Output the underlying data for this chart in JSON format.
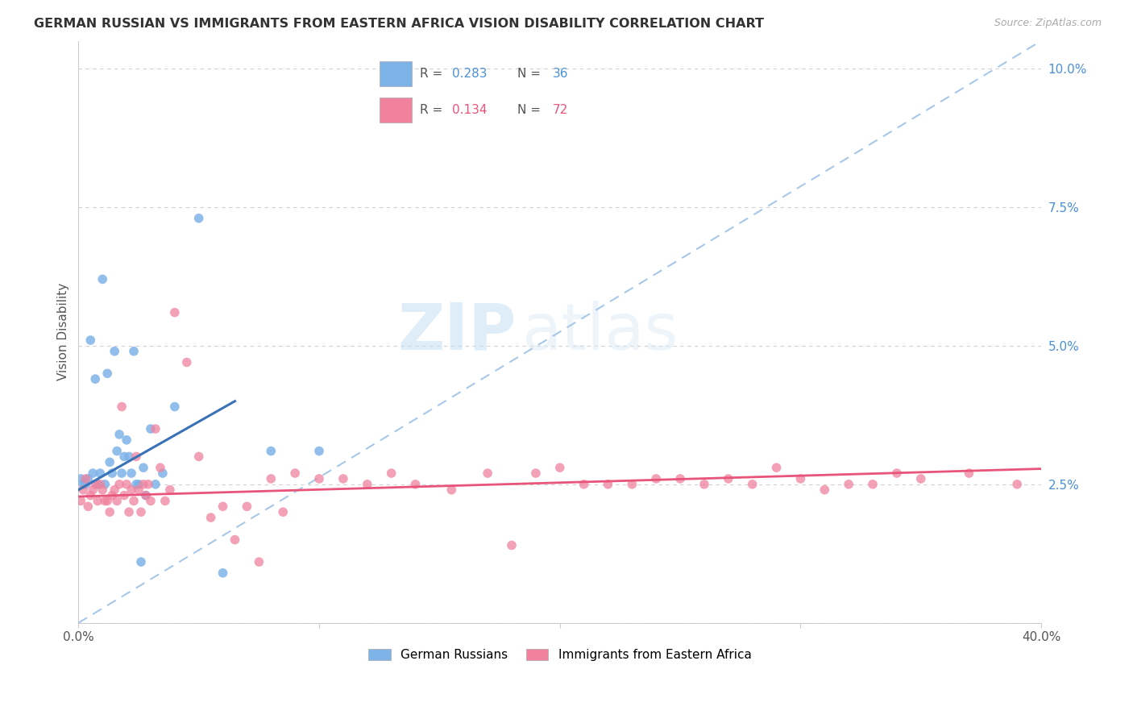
{
  "title": "GERMAN RUSSIAN VS IMMIGRANTS FROM EASTERN AFRICA VISION DISABILITY CORRELATION CHART",
  "source": "Source: ZipAtlas.com",
  "ylabel": "Vision Disability",
  "yticks": [
    0.0,
    0.025,
    0.05,
    0.075,
    0.1
  ],
  "ytick_labels": [
    "",
    "2.5%",
    "5.0%",
    "7.5%",
    "10.0%"
  ],
  "xticks": [
    0.0,
    0.1,
    0.2,
    0.3,
    0.4
  ],
  "xtick_labels": [
    "0.0%",
    "",
    "",
    "",
    "40.0%"
  ],
  "xlim": [
    0.0,
    0.4
  ],
  "ylim": [
    0.0,
    0.105
  ],
  "blue_R": 0.283,
  "blue_N": 36,
  "pink_R": 0.134,
  "pink_N": 72,
  "legend_label_blue": "German Russians",
  "legend_label_pink": "Immigrants from Eastern Africa",
  "blue_color": "#7eb3e8",
  "pink_color": "#f0829e",
  "blue_line_color": "#3a72b8",
  "pink_line_color": "#e8547a",
  "dashed_line_color": "#a8c8e8",
  "watermark_zip": "ZIP",
  "watermark_atlas": "atlas",
  "background_color": "#ffffff",
  "blue_points_x": [
    0.001,
    0.002,
    0.003,
    0.004,
    0.005,
    0.006,
    0.007,
    0.008,
    0.009,
    0.01,
    0.011,
    0.012,
    0.013,
    0.014,
    0.015,
    0.016,
    0.017,
    0.018,
    0.019,
    0.02,
    0.021,
    0.022,
    0.023,
    0.024,
    0.025,
    0.026,
    0.027,
    0.028,
    0.03,
    0.032,
    0.035,
    0.04,
    0.05,
    0.06,
    0.08,
    0.1
  ],
  "blue_points_y": [
    0.026,
    0.025,
    0.025,
    0.026,
    0.051,
    0.027,
    0.044,
    0.025,
    0.027,
    0.062,
    0.025,
    0.045,
    0.029,
    0.027,
    0.049,
    0.031,
    0.034,
    0.027,
    0.03,
    0.033,
    0.03,
    0.027,
    0.049,
    0.025,
    0.025,
    0.011,
    0.028,
    0.023,
    0.035,
    0.025,
    0.027,
    0.039,
    0.073,
    0.009,
    0.031,
    0.031
  ],
  "pink_points_x": [
    0.001,
    0.002,
    0.003,
    0.004,
    0.005,
    0.006,
    0.007,
    0.008,
    0.009,
    0.01,
    0.011,
    0.012,
    0.013,
    0.014,
    0.015,
    0.016,
    0.017,
    0.018,
    0.019,
    0.02,
    0.021,
    0.022,
    0.023,
    0.024,
    0.025,
    0.026,
    0.027,
    0.028,
    0.029,
    0.03,
    0.032,
    0.034,
    0.036,
    0.038,
    0.04,
    0.045,
    0.05,
    0.055,
    0.06,
    0.065,
    0.07,
    0.075,
    0.08,
    0.085,
    0.09,
    0.1,
    0.11,
    0.12,
    0.13,
    0.14,
    0.155,
    0.17,
    0.19,
    0.21,
    0.23,
    0.25,
    0.27,
    0.29,
    0.31,
    0.33,
    0.35,
    0.37,
    0.39,
    0.18,
    0.2,
    0.22,
    0.24,
    0.26,
    0.28,
    0.3,
    0.32,
    0.34
  ],
  "pink_points_y": [
    0.022,
    0.024,
    0.026,
    0.021,
    0.023,
    0.024,
    0.025,
    0.022,
    0.025,
    0.024,
    0.022,
    0.022,
    0.02,
    0.023,
    0.024,
    0.022,
    0.025,
    0.039,
    0.023,
    0.025,
    0.02,
    0.024,
    0.022,
    0.03,
    0.024,
    0.02,
    0.025,
    0.023,
    0.025,
    0.022,
    0.035,
    0.028,
    0.022,
    0.024,
    0.056,
    0.047,
    0.03,
    0.019,
    0.021,
    0.015,
    0.021,
    0.011,
    0.026,
    0.02,
    0.027,
    0.026,
    0.026,
    0.025,
    0.027,
    0.025,
    0.024,
    0.027,
    0.027,
    0.025,
    0.025,
    0.026,
    0.026,
    0.028,
    0.024,
    0.025,
    0.026,
    0.027,
    0.025,
    0.014,
    0.028,
    0.025,
    0.026,
    0.025,
    0.025,
    0.026,
    0.025,
    0.027
  ],
  "blue_line_x0": 0.0,
  "blue_line_y0": 0.024,
  "blue_line_x1": 0.065,
  "blue_line_y1": 0.04,
  "pink_line_x0": 0.0,
  "pink_line_y0": 0.0228,
  "pink_line_x1": 0.4,
  "pink_line_y1": 0.0278,
  "dashed_line_x0": 0.0,
  "dashed_line_y0": 0.0,
  "dashed_line_x1": 0.4,
  "dashed_line_y1": 0.105
}
